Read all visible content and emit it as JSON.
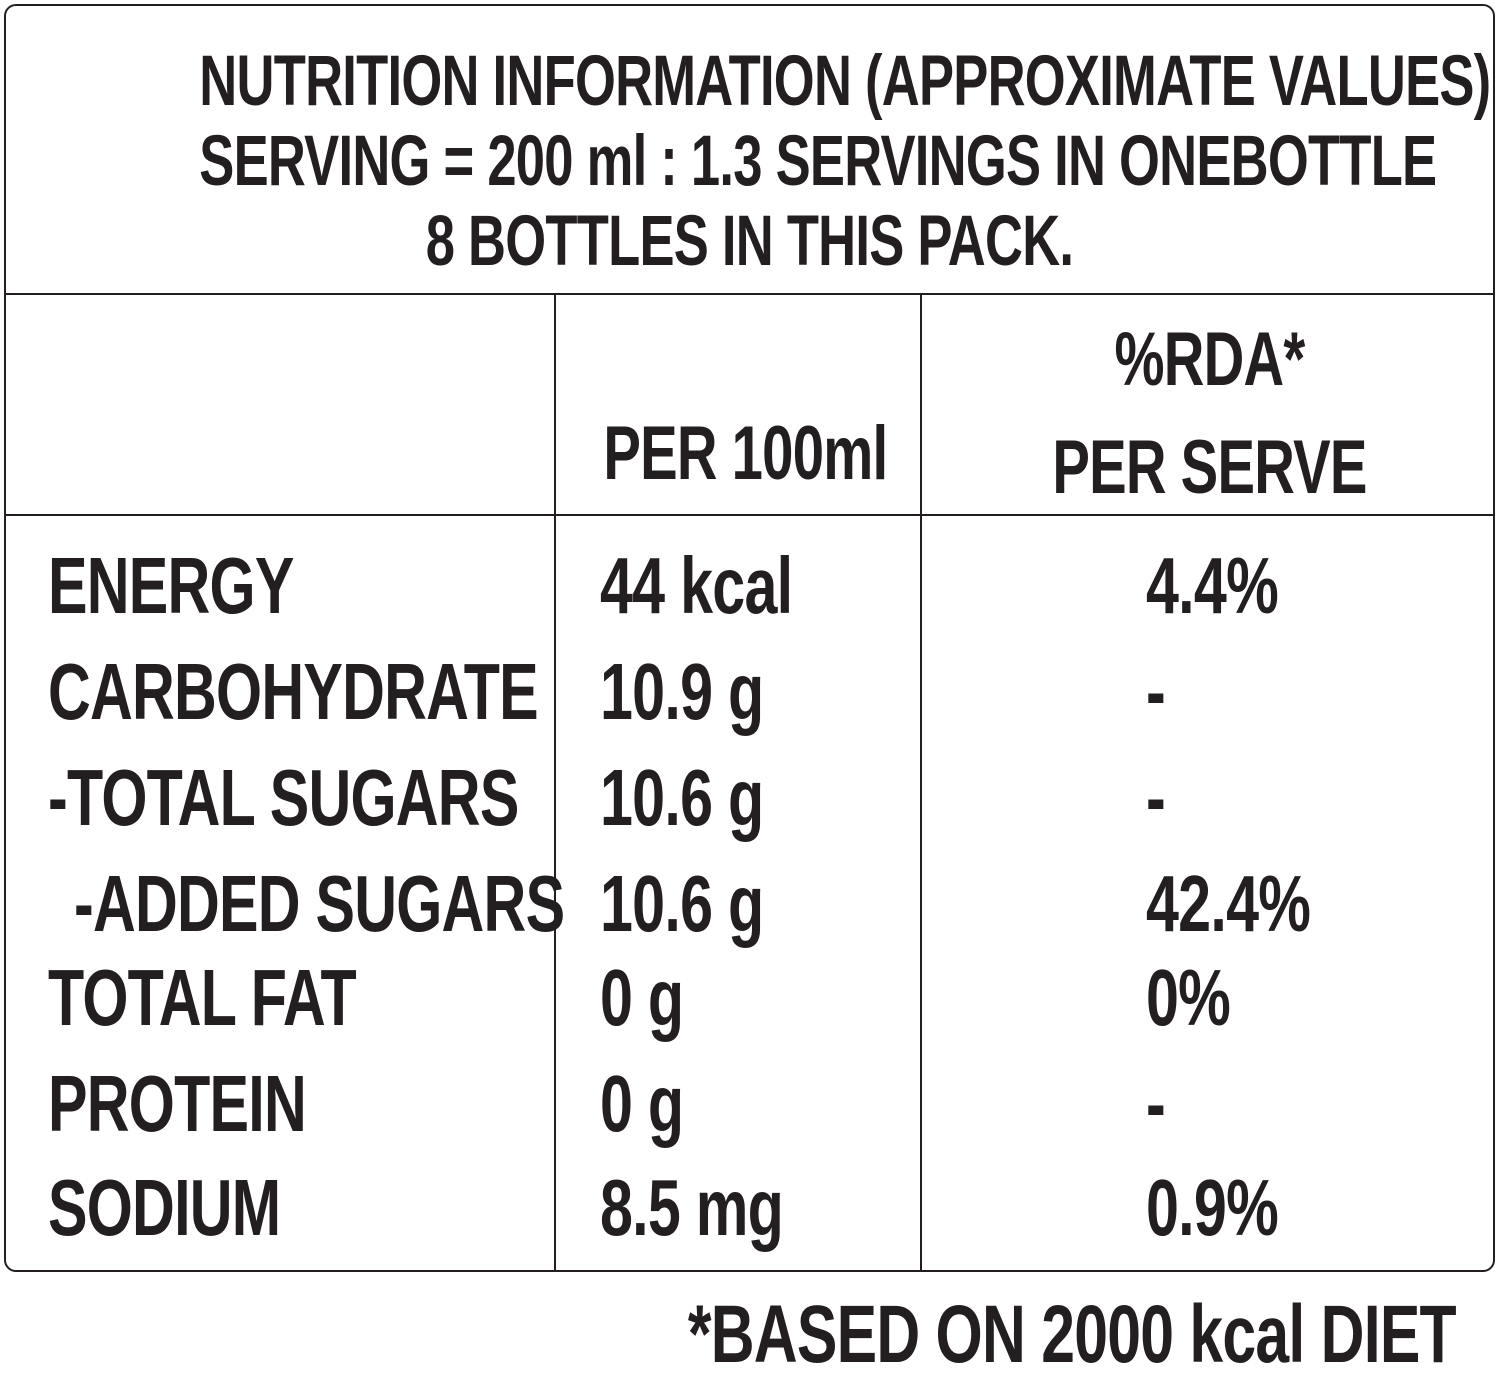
{
  "header": {
    "line1": "NUTRITION INFORMATION (APPROXIMATE VALUES)",
    "line2": "SERVING = 200 ml : 1.3 SERVINGS IN ONEBOTTLE",
    "line3": "8 BOTTLES IN THIS PACK."
  },
  "columns": {
    "per100": "PER 100ml",
    "rda_line1": "%RDA*",
    "rda_line2": "PER SERVE"
  },
  "rows": [
    {
      "nutrient": "ENERGY",
      "per100": "44 kcal",
      "rda": "4.4%"
    },
    {
      "nutrient": "CARBOHYDRATE",
      "per100": "10.9 g",
      "rda": "-"
    },
    {
      "nutrient": "-TOTAL SUGARS",
      "per100": "10.6 g",
      "rda": "-"
    },
    {
      "nutrient": "-ADDED SUGARS",
      "per100": "10.6 g",
      "rda": "42.4%"
    },
    {
      "nutrient": "TOTAL FAT",
      "per100": "0 g",
      "rda": "0%"
    },
    {
      "nutrient": "PROTEIN",
      "per100": "0 g",
      "rda": "-"
    },
    {
      "nutrient": "SODIUM",
      "per100": "8.5 mg",
      "rda": "0.9%"
    }
  ],
  "footnote": "*BASED ON 2000 kcal DIET"
}
